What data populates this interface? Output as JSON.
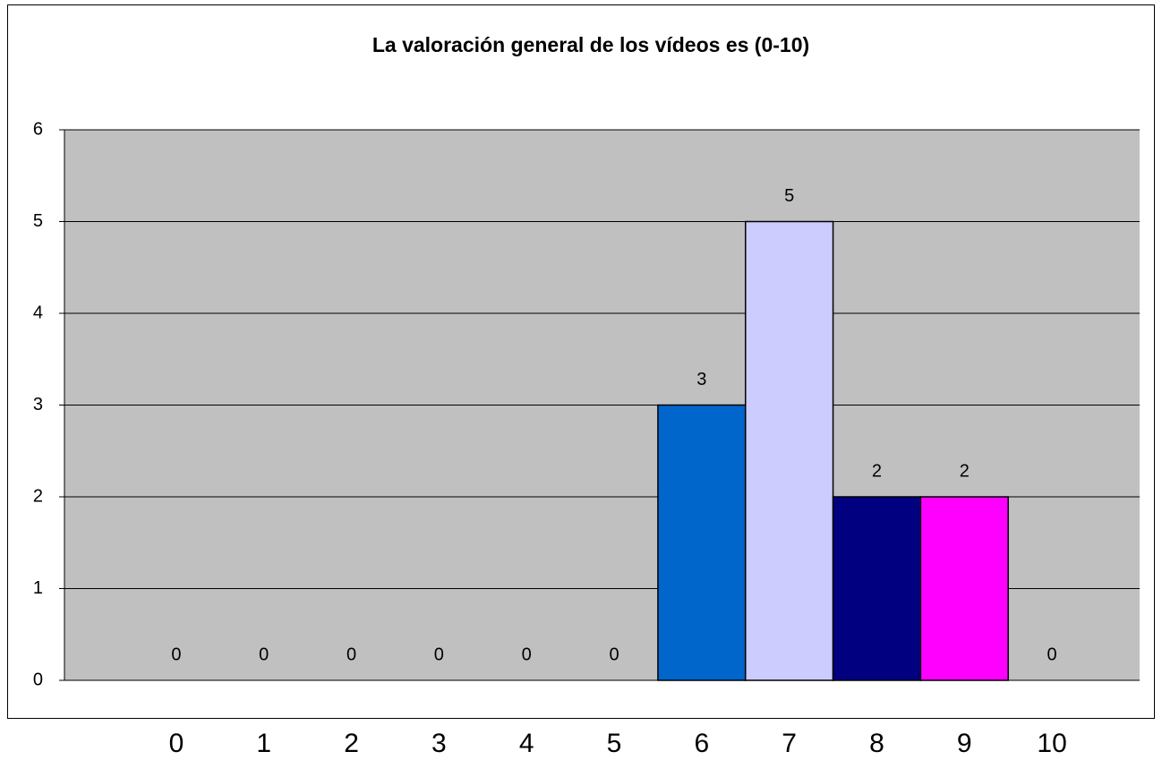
{
  "chart_data": {
    "type": "bar",
    "title": "La valoración general de los vídeos es (0-10)",
    "categories": [
      "0",
      "1",
      "2",
      "3",
      "4",
      "5",
      "6",
      "7",
      "8",
      "9",
      "10"
    ],
    "values": [
      0,
      0,
      0,
      0,
      0,
      0,
      3,
      5,
      2,
      2,
      0
    ],
    "colors": [
      "#9999ff",
      "#993366",
      "#ffffcc",
      "#ccffff",
      "#660066",
      "#ff8080",
      "#0066cc",
      "#ccccff",
      "#000080",
      "#ff00ff",
      "#ffff00"
    ],
    "ylim": [
      0,
      6
    ],
    "yticks": [
      0,
      1,
      2,
      3,
      4,
      5,
      6
    ],
    "grid": true
  }
}
